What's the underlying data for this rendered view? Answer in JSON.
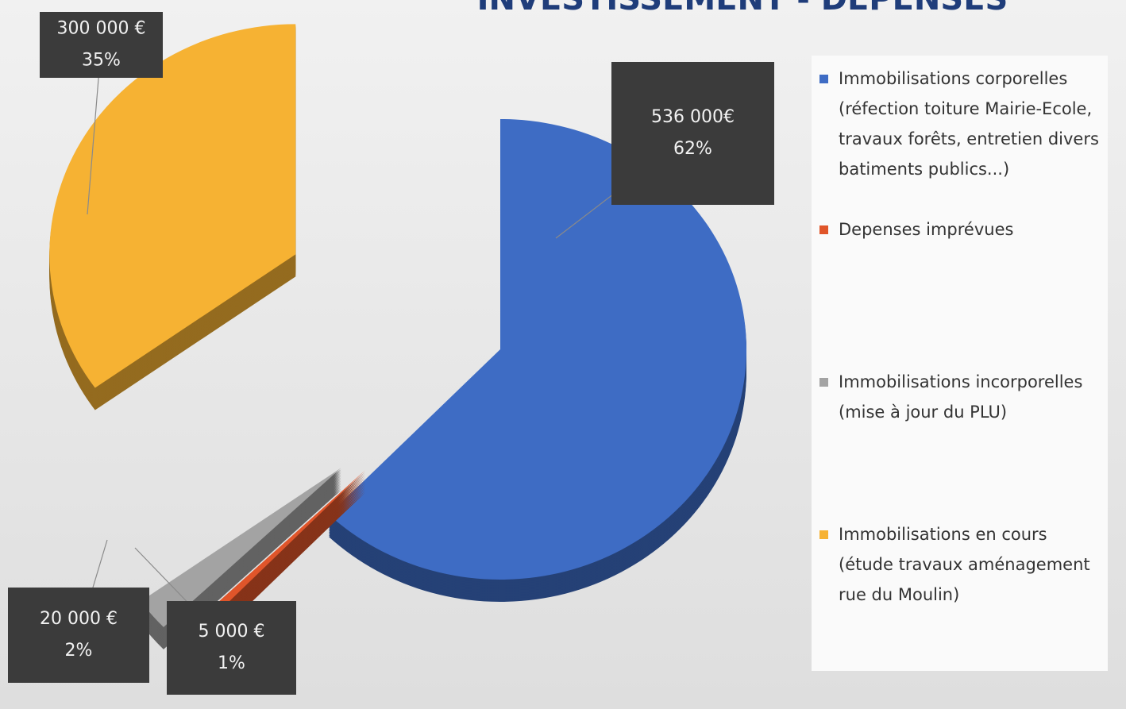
{
  "chart_data": {
    "type": "pie",
    "title": "INVESTISSEMENT - DEPENSES",
    "categories": [
      "Immobilisations corporelles (réfection toiture Mairie-Ecole, travaux forêts, entretien divers batiments publics...)",
      "Depenses imprévues",
      "Immobilisations incorporelles (mise à jour du PLU)",
      "Immobilisations en cours (étude travaux aménagement rue du Moulin)"
    ],
    "values": [
      536000,
      5000,
      20000,
      300000
    ],
    "value_labels": [
      "536 000€",
      "5 000 €",
      "20 000 €",
      "300 000 €"
    ],
    "percentages": [
      62,
      1,
      2,
      35
    ],
    "percentage_labels": [
      "62%",
      "1%",
      "2%",
      "35%"
    ],
    "colors": [
      "#3e6cc4",
      "#e0552a",
      "#a3a3a3",
      "#f6b233"
    ]
  }
}
